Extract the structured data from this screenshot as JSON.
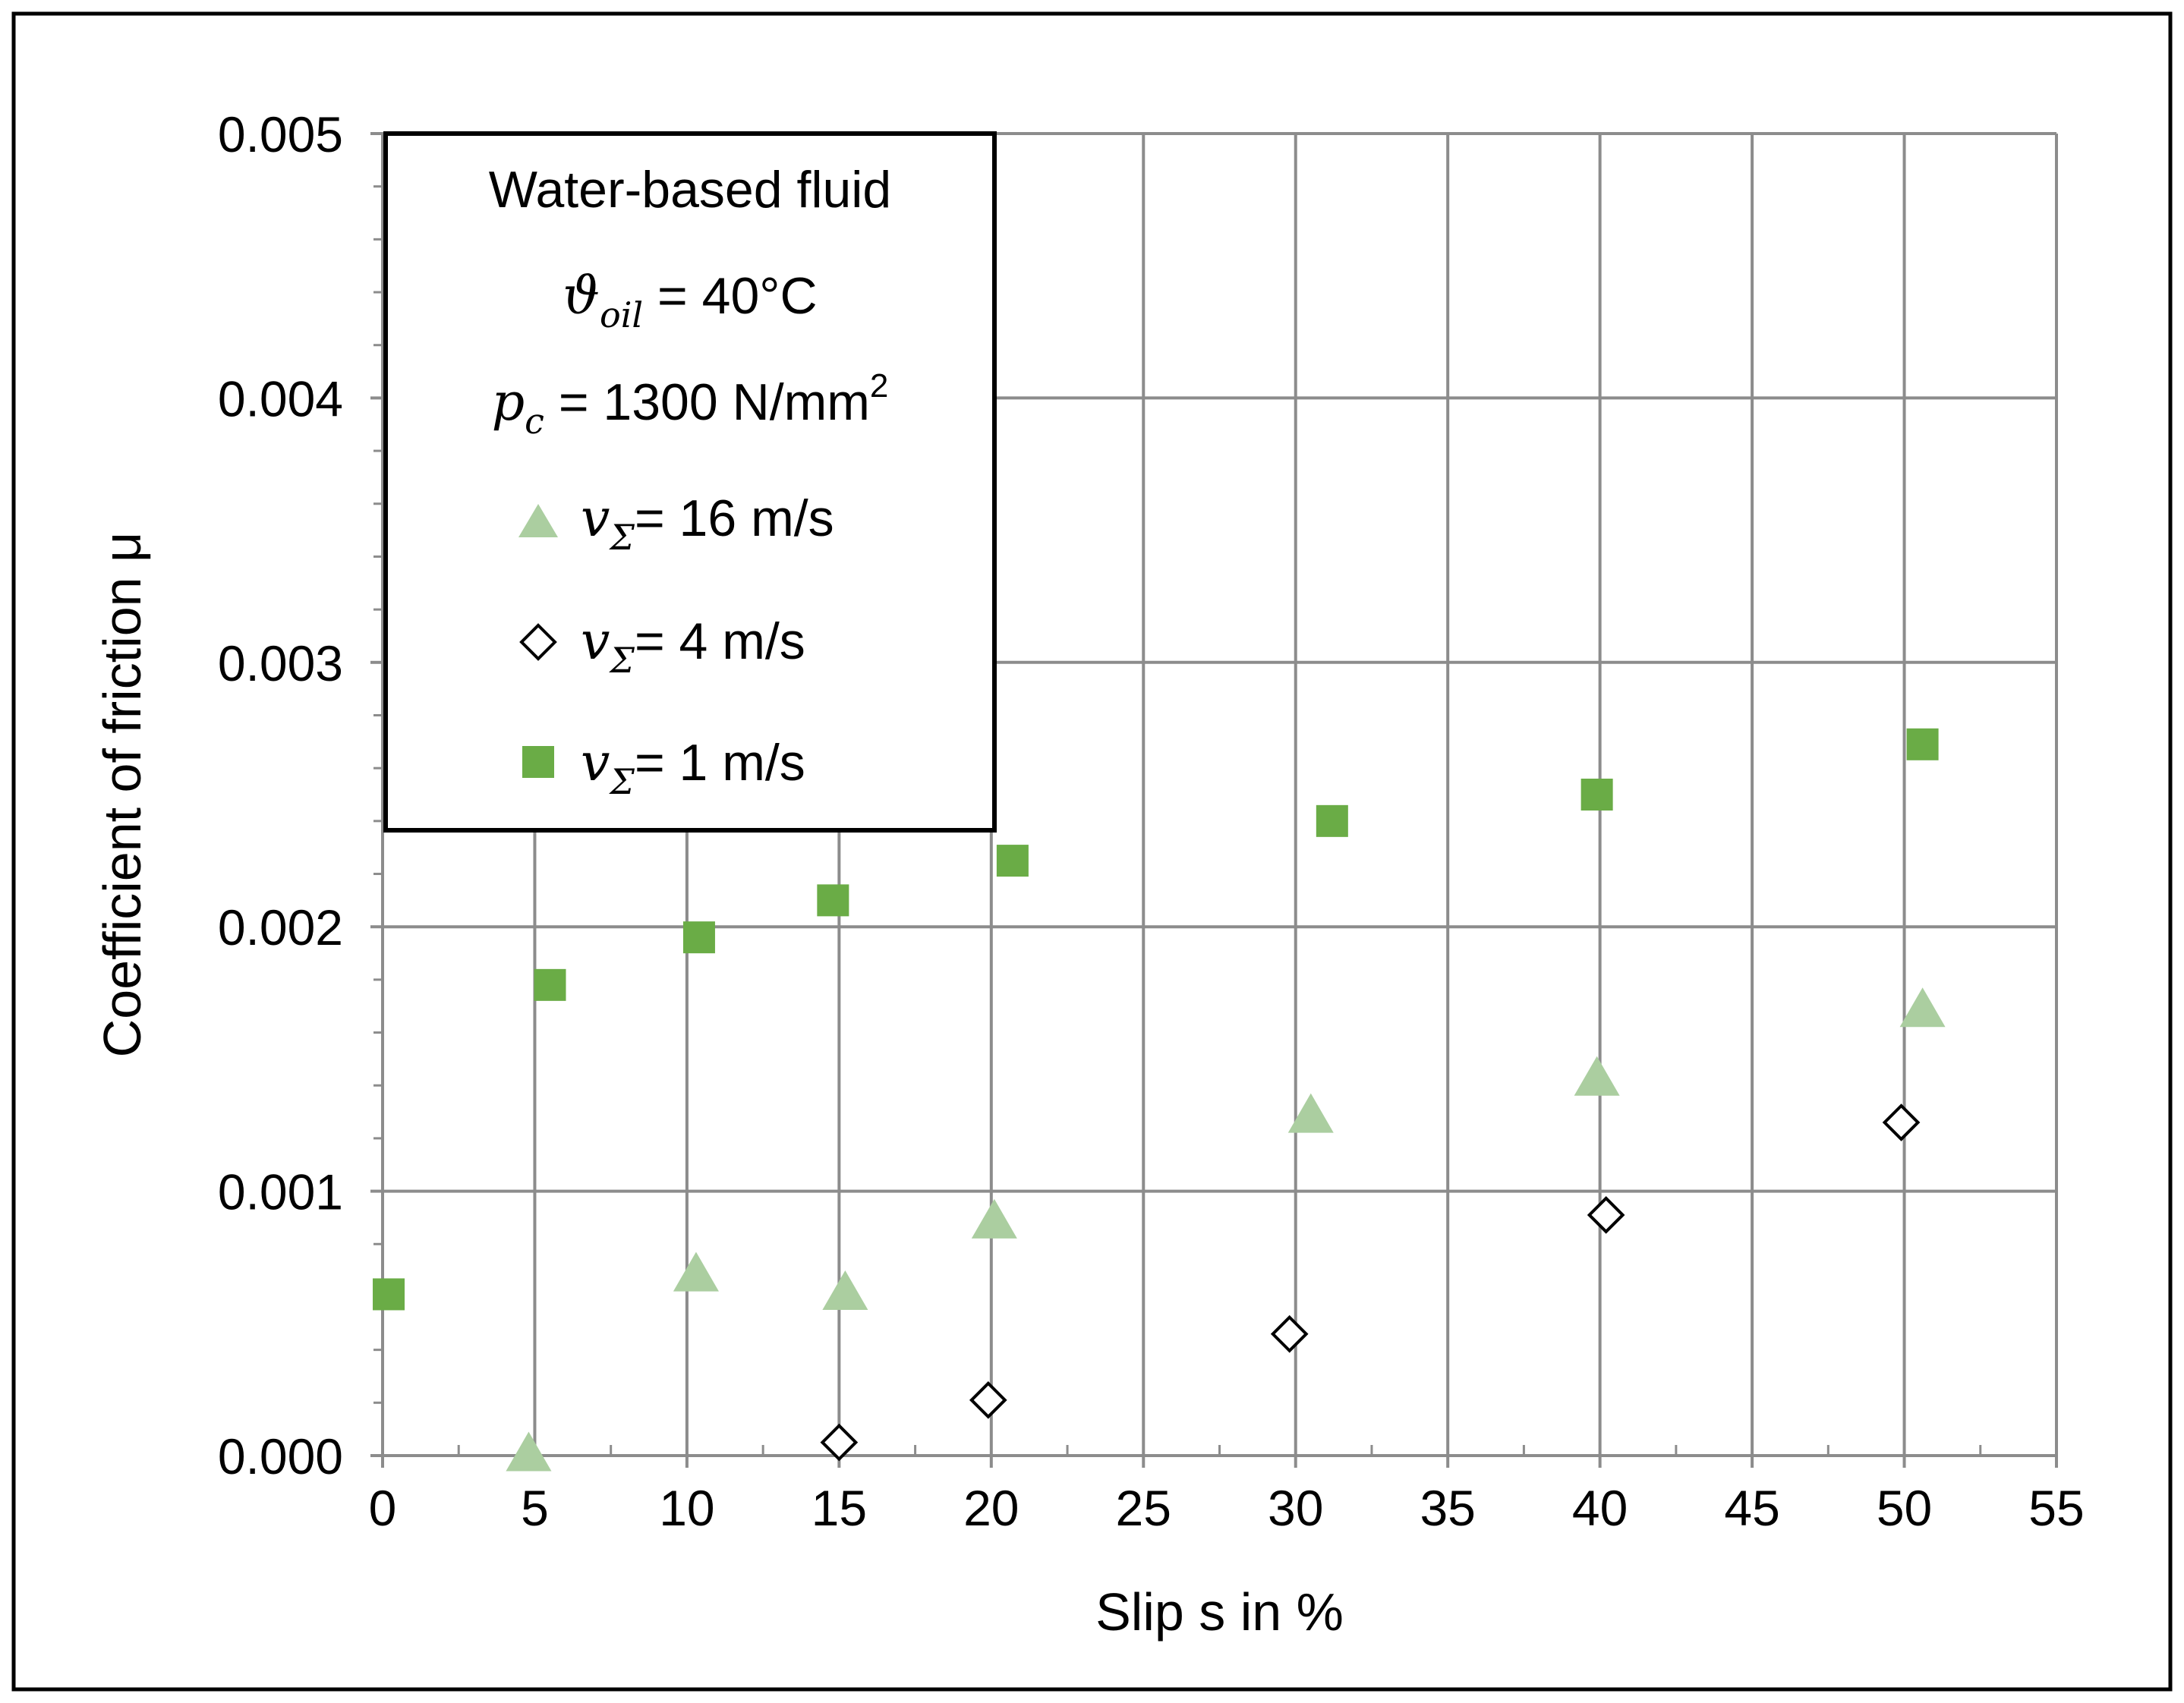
{
  "chart_data": {
    "type": "scatter",
    "title": "",
    "xlabel": "Slip s in %",
    "ylabel": "Coefficient of friction μ",
    "xlim": [
      0,
      55
    ],
    "ylim": [
      0,
      0.005
    ],
    "x_ticks": [
      "0",
      "5",
      "10",
      "15",
      "20",
      "25",
      "30",
      "35",
      "40",
      "45",
      "50",
      "55"
    ],
    "y_ticks": [
      "0.000",
      "0.001",
      "0.002",
      "0.003",
      "0.004",
      "0.005"
    ],
    "grid": true,
    "legend": {
      "position": "top-left",
      "title_lines": [
        {
          "text": "Water-based fluid"
        },
        {
          "symbol": "ϑ",
          "subscript": "oil",
          "text": " = 40°C"
        },
        {
          "symbol": "p",
          "subscript": "c",
          "text": " = 1300 N/mm",
          "superscript": "2"
        }
      ]
    },
    "series": [
      {
        "name": "16 m/s",
        "legend_symbol": "v",
        "legend_subscript": "Σ",
        "legend_text": "= 16 m/s",
        "marker": "triangle",
        "color": "#abcea0",
        "x": [
          4.8,
          10.3,
          15.2,
          20.1,
          30.5,
          39.9,
          50.6
        ],
        "y": [
          1e-05,
          0.00069,
          0.00062,
          0.00089,
          0.00129,
          0.00143,
          0.00169
        ]
      },
      {
        "name": "4 m/s",
        "legend_symbol": "v",
        "legend_subscript": "Σ",
        "legend_text": "= 4 m/s",
        "marker": "diamond",
        "color": "#000000",
        "x": [
          15.0,
          19.9,
          29.8,
          40.2,
          49.9
        ],
        "y": [
          5e-05,
          0.00021,
          0.00046,
          0.00091,
          0.00126
        ]
      },
      {
        "name": "1 m/s",
        "legend_symbol": "v",
        "legend_subscript": "Σ",
        "legend_text": "= 1 m/s",
        "marker": "square",
        "color": "#6aac46",
        "x": [
          0.2,
          5.5,
          10.4,
          14.8,
          20.7,
          31.2,
          39.9,
          50.6
        ],
        "y": [
          0.00061,
          0.00178,
          0.00196,
          0.0021,
          0.00225,
          0.0024,
          0.0025,
          0.00269
        ]
      }
    ]
  }
}
